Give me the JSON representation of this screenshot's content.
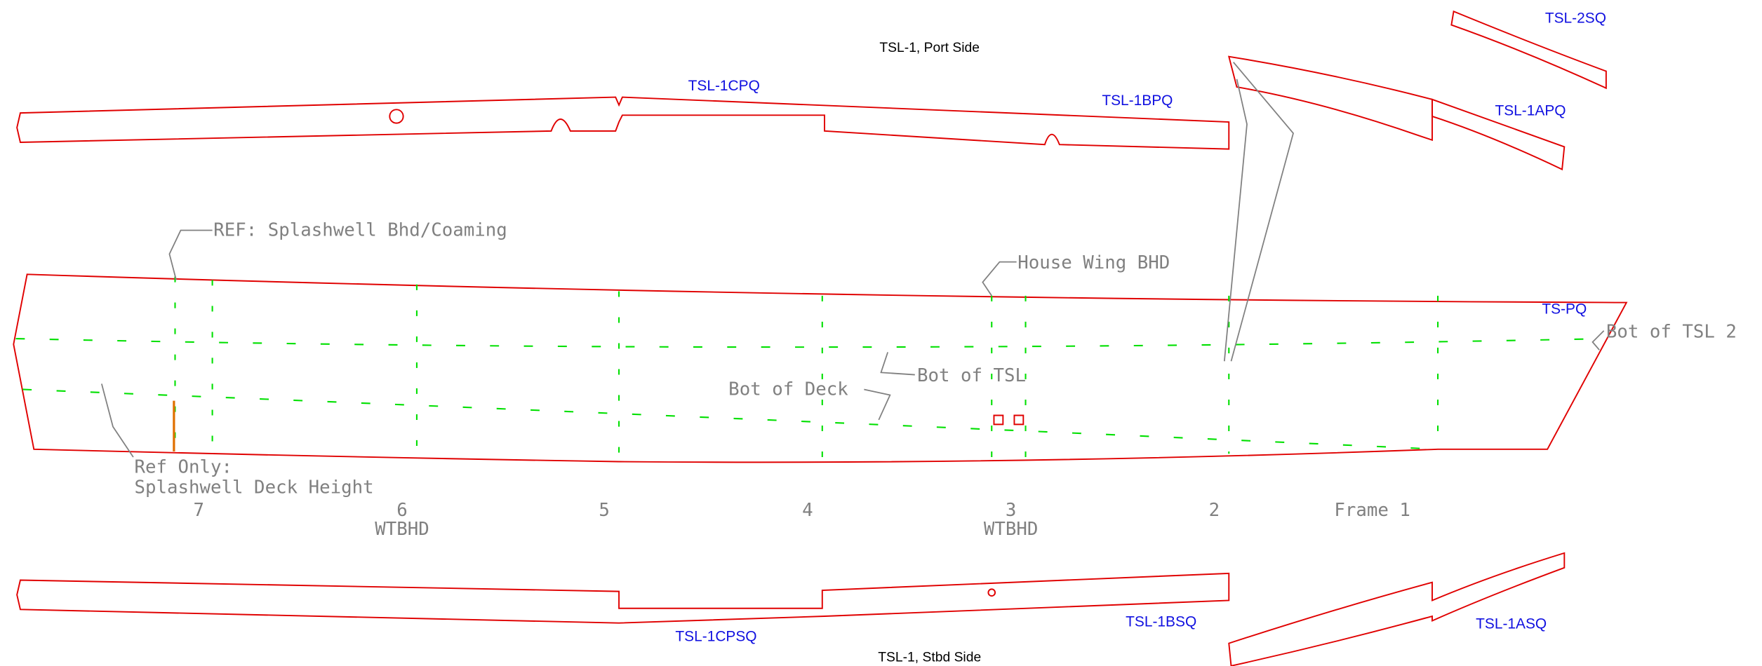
{
  "titles": {
    "port": "TSL-1, Port Side",
    "stbd": "TSL-1, Stbd Side"
  },
  "parts": {
    "tsl_2sq": "TSL-2SQ",
    "tsl_1cpq": "TSL-1CPQ",
    "tsl_1bpq": "TSL-1BPQ",
    "tsl_1apq": "TSL-1APQ",
    "ts_pq": "TS-PQ",
    "tsl_1cpsq": "TSL-1CPSQ",
    "tsl_1bsq": "TSL-1BSQ",
    "tsl_1asq": "TSL-1ASQ"
  },
  "annotations": {
    "ref_splashwell": "REF: Splashwell Bhd/Coaming",
    "house_wing": "House Wing BHD",
    "bot_tsl2": "Bot of TSL 2",
    "bot_tsl": "Bot of TSL",
    "bot_deck": "Bot of Deck",
    "ref_only": "Ref Only:",
    "splashwell_deck": "Splashwell Deck Height"
  },
  "frames": [
    {
      "label": "7"
    },
    {
      "label": "6",
      "note": "WTBHD"
    },
    {
      "label": "5"
    },
    {
      "label": "4"
    },
    {
      "label": "3",
      "note": "WTBHD"
    },
    {
      "label": "2"
    },
    {
      "label": "Frame 1"
    }
  ]
}
